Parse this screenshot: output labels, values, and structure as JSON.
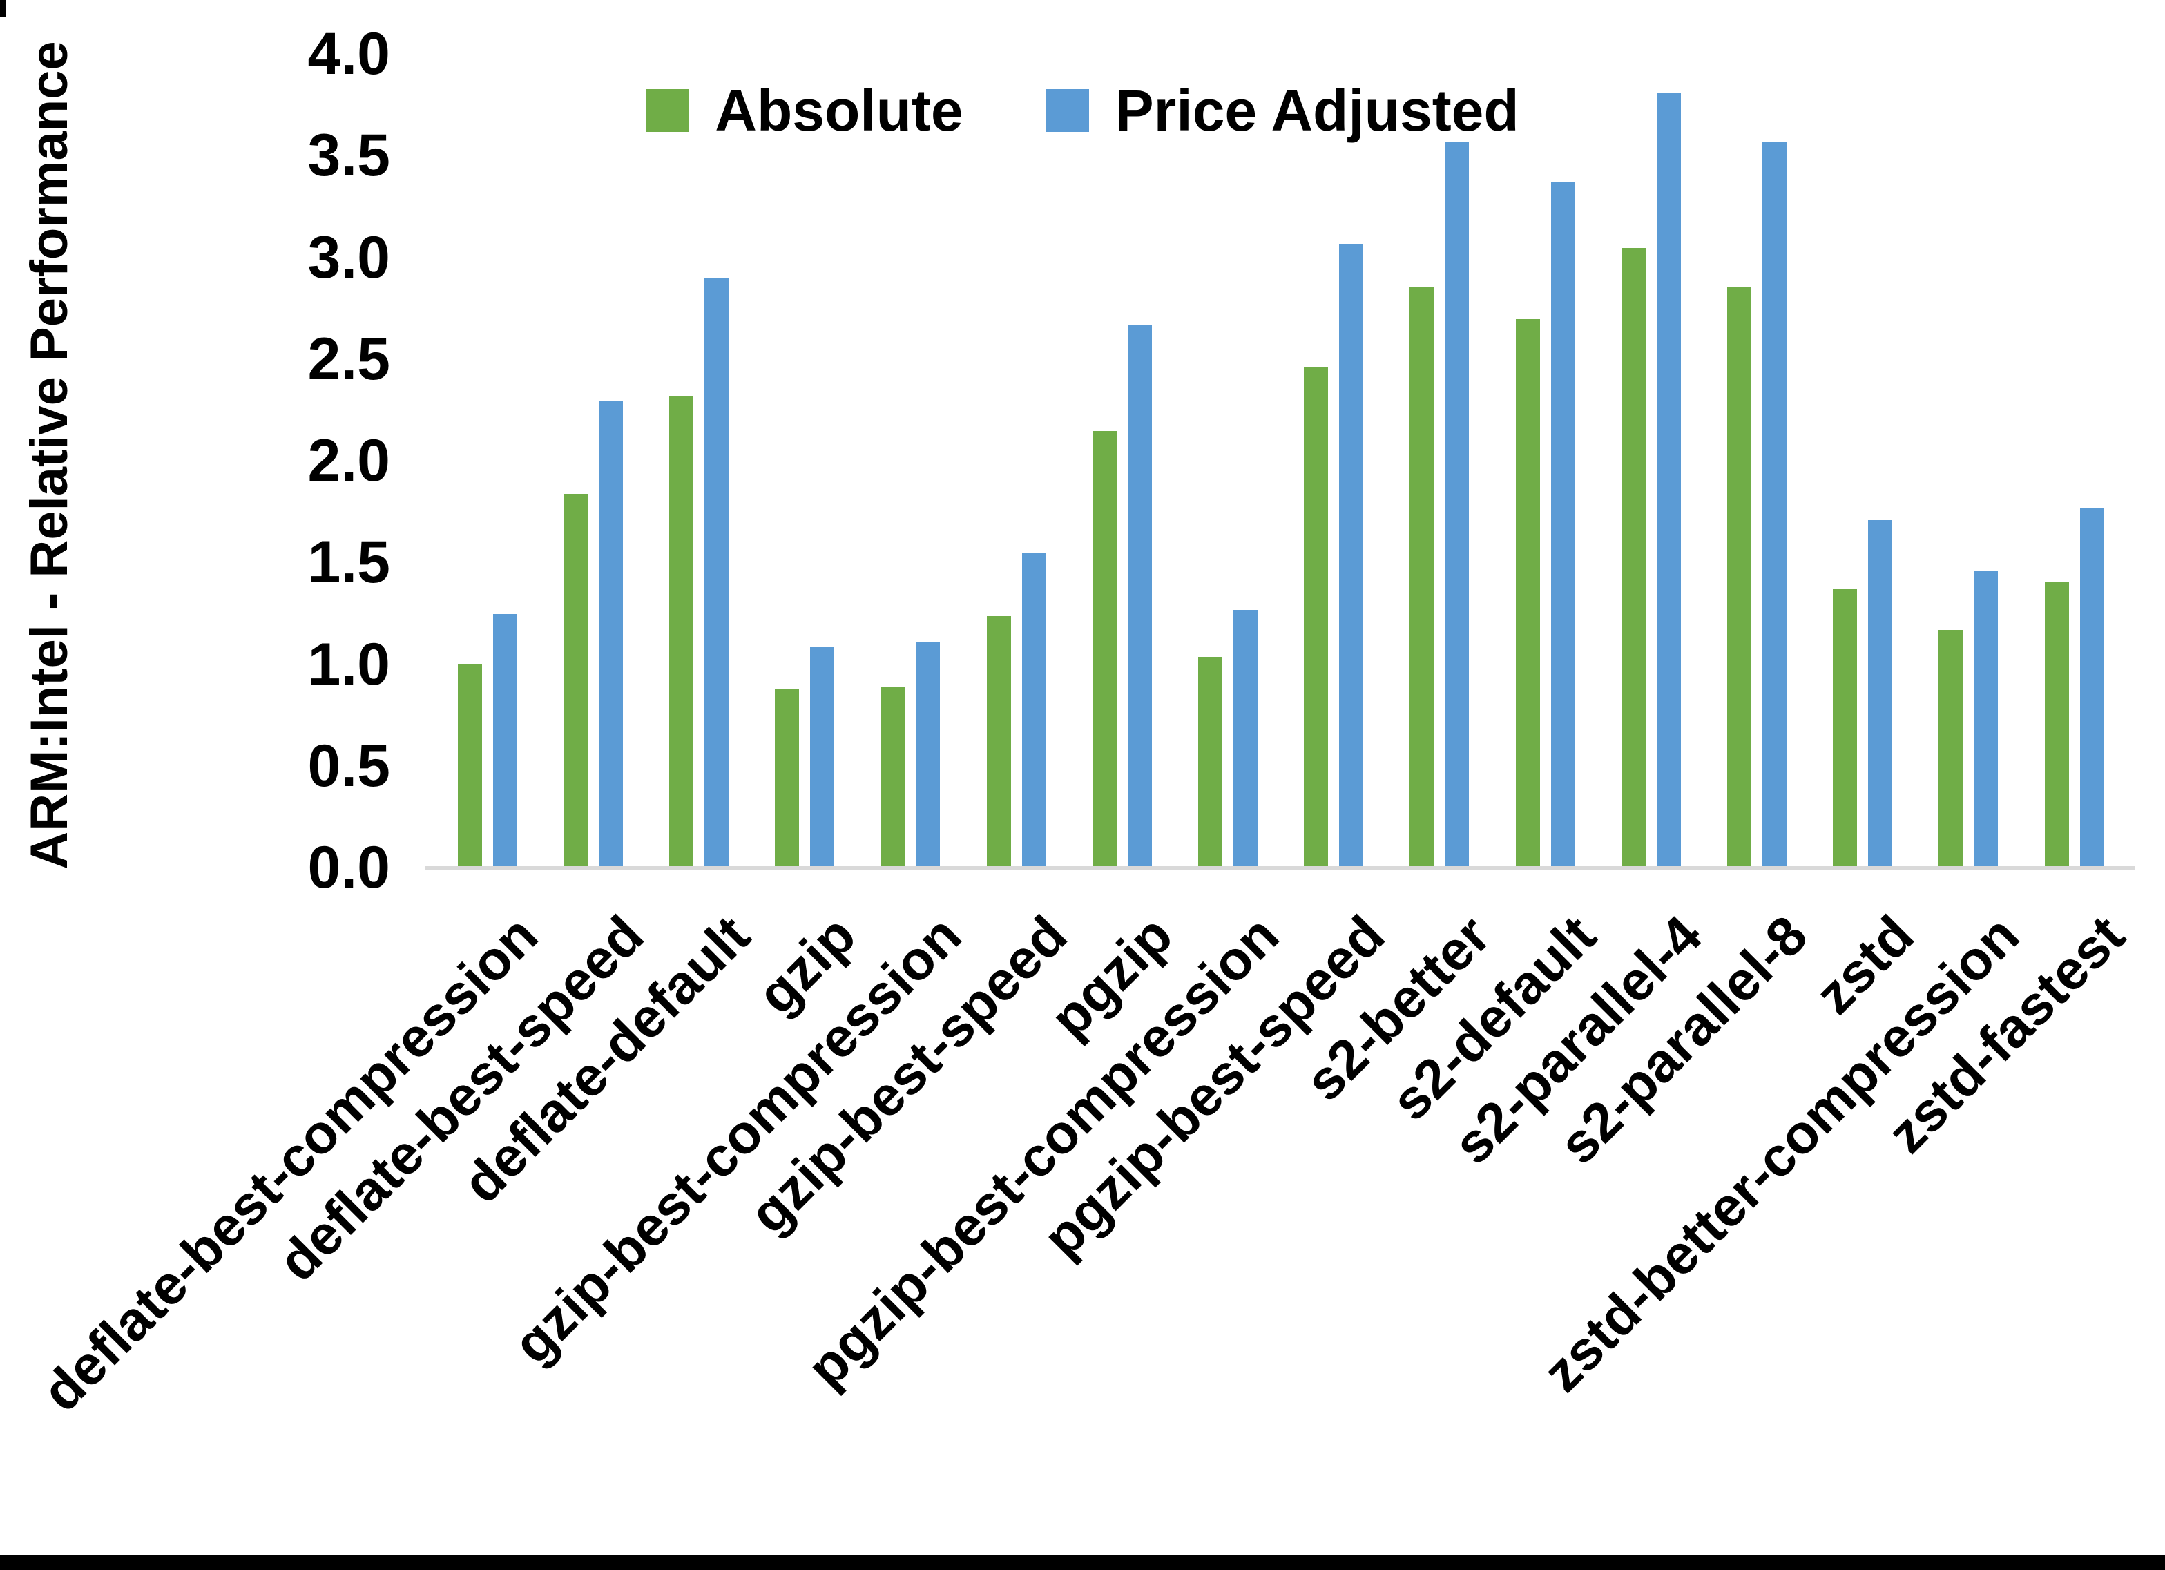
{
  "figure": {
    "background": "#ffffff",
    "yaxis_title": "ARM:Intel - Relative Performance"
  },
  "legend": {
    "items": [
      {
        "label": "Absolute",
        "color": "#70AD47"
      },
      {
        "label": "Price Adjusted",
        "color": "#5B9BD5"
      }
    ]
  },
  "colors": {
    "absolute_green": "#70AD47",
    "price_adjusted_blue": "#5B9BD5",
    "axis_line_gray": "#d9d9d9",
    "text_black": "#000000"
  },
  "chart_data": {
    "type": "bar",
    "title": "",
    "xlabel": "",
    "ylabel": "ARM:Intel - Relative Performance",
    "ylim": [
      0,
      4.0
    ],
    "ytick_step": 0.5,
    "ytick_labels": [
      "0.0",
      "0.5",
      "1.0",
      "1.5",
      "2.0",
      "2.5",
      "3.0",
      "3.5",
      "4.0"
    ],
    "grid": false,
    "legend_position": "top-center",
    "categories": [
      "deflate-best-compression",
      "deflate-best-speed",
      "deflate-default",
      "gzip",
      "gzip-best-compression",
      "gzip-best-speed",
      "pgzip",
      "pgzip-best-compression",
      "pgzip-best-speed",
      "s2-better",
      "s2-default",
      "s2-parallel-4",
      "s2-parallel-8",
      "zstd",
      "zstd-better-compression",
      "zstd-fastest"
    ],
    "series": [
      {
        "name": "Absolute",
        "color": "#70AD47",
        "values": [
          0.99,
          1.83,
          2.31,
          0.87,
          0.88,
          1.23,
          2.14,
          1.03,
          2.45,
          2.85,
          2.69,
          3.04,
          2.85,
          1.36,
          1.16,
          1.4
        ]
      },
      {
        "name": "Price Adjusted",
        "color": "#5B9BD5",
        "values": [
          1.24,
          2.29,
          2.89,
          1.08,
          1.1,
          1.54,
          2.66,
          1.26,
          3.06,
          3.56,
          3.36,
          3.8,
          3.56,
          1.7,
          1.45,
          1.76
        ]
      }
    ]
  }
}
